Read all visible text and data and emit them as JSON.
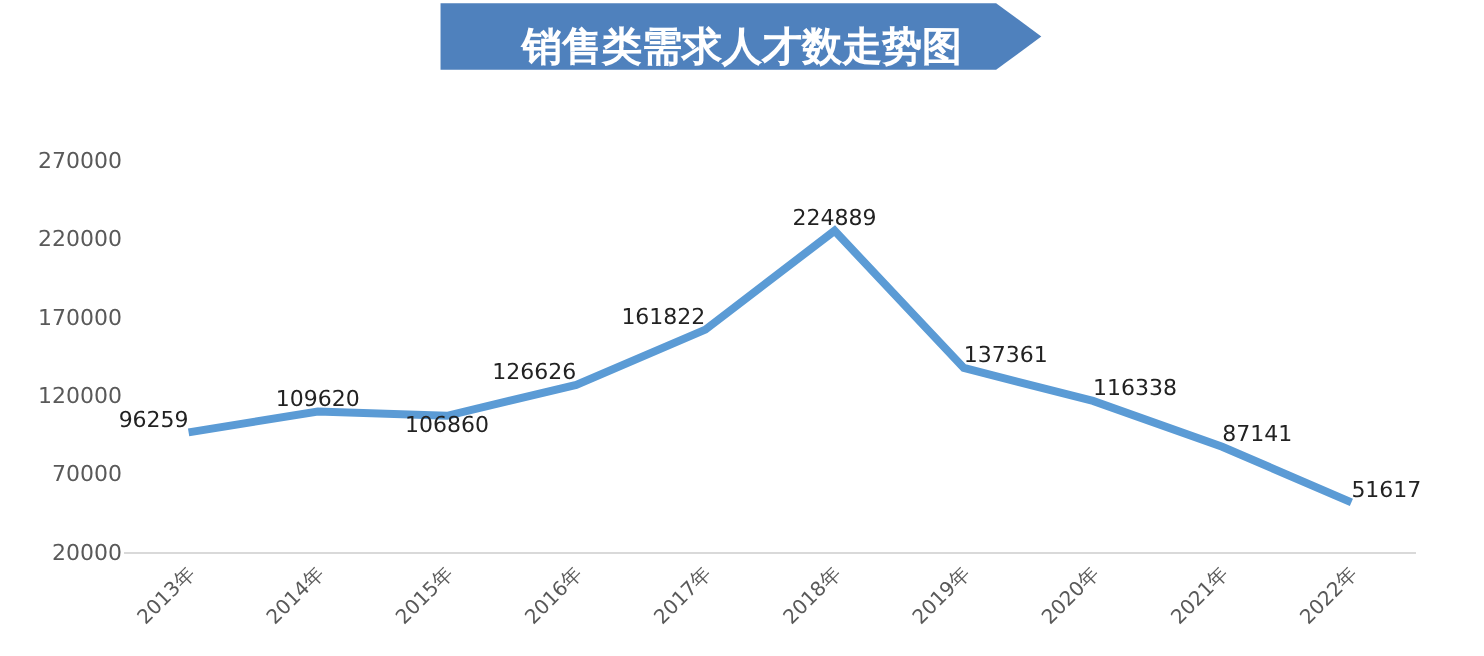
{
  "chart_data": {
    "type": "line",
    "title": "销售类需求人才数走势图",
    "categories": [
      "2013年",
      "2014年",
      "2015年",
      "2016年",
      "2017年",
      "2018年",
      "2019年",
      "2020年",
      "2021年",
      "2022年"
    ],
    "series": [
      {
        "color": "#5b9bd5",
        "values": [
          96259,
          109620,
          106860,
          126626,
          161822,
          224889,
          137361,
          116338,
          87141,
          51617
        ]
      }
    ],
    "ylim": [
      20000,
      270000
    ],
    "yticks": [
      20000,
      70000,
      120000,
      170000,
      220000,
      270000
    ],
    "data_labels": true,
    "grid": false,
    "legend": false,
    "marker": "none",
    "line_style": "solid"
  }
}
